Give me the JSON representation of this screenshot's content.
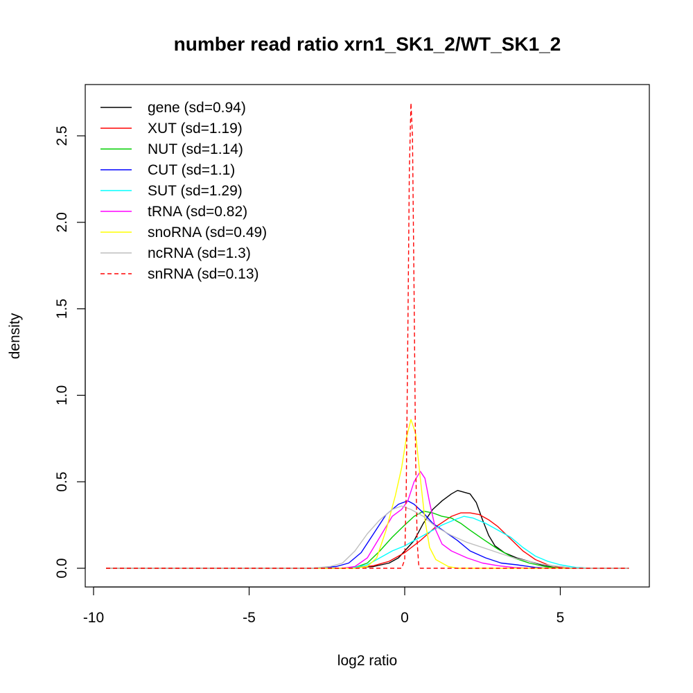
{
  "chart_data": {
    "type": "line",
    "title": "number read ratio xrn1_SK1_2/WT_SK1_2",
    "xlabel": "log2 ratio",
    "ylabel": "density",
    "xlim": [
      -10,
      7.5
    ],
    "ylim": [
      0,
      2.7
    ],
    "xticks": [
      -10,
      -5,
      0,
      5
    ],
    "xtick_labels": [
      "-10",
      "-5",
      "0",
      "5"
    ],
    "yticks": [
      0.0,
      0.5,
      1.0,
      1.5,
      2.0,
      2.5
    ],
    "ytick_labels": [
      "0.0",
      "0.5",
      "1.0",
      "1.5",
      "2.0",
      "2.5"
    ],
    "grid": false,
    "legend_position": "top-left",
    "series": [
      {
        "name": "gene (sd=0.94)",
        "color": "#000000",
        "dash": "solid",
        "points": [
          [
            -9.6,
            0
          ],
          [
            -2.0,
            0
          ],
          [
            -1.5,
            0.005
          ],
          [
            -1.0,
            0.01
          ],
          [
            -0.5,
            0.03
          ],
          [
            -0.2,
            0.06
          ],
          [
            0.0,
            0.1
          ],
          [
            0.3,
            0.16
          ],
          [
            0.6,
            0.26
          ],
          [
            0.9,
            0.34
          ],
          [
            1.2,
            0.39
          ],
          [
            1.5,
            0.43
          ],
          [
            1.7,
            0.45
          ],
          [
            1.9,
            0.44
          ],
          [
            2.1,
            0.43
          ],
          [
            2.3,
            0.38
          ],
          [
            2.5,
            0.28
          ],
          [
            2.7,
            0.19
          ],
          [
            2.9,
            0.13
          ],
          [
            3.2,
            0.09
          ],
          [
            3.6,
            0.06
          ],
          [
            4.0,
            0.04
          ],
          [
            4.4,
            0.02
          ],
          [
            4.8,
            0.005
          ],
          [
            5.2,
            0
          ],
          [
            7.2,
            0
          ]
        ]
      },
      {
        "name": "XUT (sd=1.19)",
        "color": "#ff0000",
        "dash": "solid",
        "points": [
          [
            -9.6,
            0
          ],
          [
            -2.0,
            0
          ],
          [
            -1.5,
            0.005
          ],
          [
            -1.0,
            0.015
          ],
          [
            -0.5,
            0.04
          ],
          [
            0.0,
            0.09
          ],
          [
            0.5,
            0.16
          ],
          [
            1.0,
            0.24
          ],
          [
            1.5,
            0.3
          ],
          [
            1.8,
            0.32
          ],
          [
            2.1,
            0.32
          ],
          [
            2.4,
            0.31
          ],
          [
            2.7,
            0.28
          ],
          [
            3.0,
            0.24
          ],
          [
            3.4,
            0.17
          ],
          [
            3.8,
            0.1
          ],
          [
            4.2,
            0.05
          ],
          [
            4.6,
            0.02
          ],
          [
            5.0,
            0.005
          ],
          [
            5.5,
            0
          ],
          [
            7.2,
            0
          ]
        ]
      },
      {
        "name": "NUT (sd=1.14)",
        "color": "#00cd00",
        "dash": "solid",
        "points": [
          [
            -9.6,
            0
          ],
          [
            -2.0,
            0
          ],
          [
            -1.6,
            0.005
          ],
          [
            -1.2,
            0.03
          ],
          [
            -0.8,
            0.1
          ],
          [
            -0.4,
            0.18
          ],
          [
            0.0,
            0.25
          ],
          [
            0.3,
            0.3
          ],
          [
            0.6,
            0.33
          ],
          [
            0.9,
            0.32
          ],
          [
            1.2,
            0.3
          ],
          [
            1.5,
            0.29
          ],
          [
            1.8,
            0.26
          ],
          [
            2.1,
            0.22
          ],
          [
            2.5,
            0.17
          ],
          [
            3.0,
            0.11
          ],
          [
            3.5,
            0.06
          ],
          [
            4.0,
            0.03
          ],
          [
            4.5,
            0.01
          ],
          [
            5.0,
            0
          ],
          [
            7.2,
            0
          ]
        ]
      },
      {
        "name": "CUT (sd=1.1)",
        "color": "#0000ff",
        "dash": "solid",
        "points": [
          [
            -9.6,
            0
          ],
          [
            -3.0,
            0
          ],
          [
            -2.2,
            0.01
          ],
          [
            -1.8,
            0.03
          ],
          [
            -1.4,
            0.09
          ],
          [
            -1.0,
            0.2
          ],
          [
            -0.6,
            0.31
          ],
          [
            -0.2,
            0.37
          ],
          [
            0.1,
            0.39
          ],
          [
            0.3,
            0.37
          ],
          [
            0.6,
            0.32
          ],
          [
            0.9,
            0.26
          ],
          [
            1.3,
            0.21
          ],
          [
            1.7,
            0.16
          ],
          [
            2.1,
            0.1
          ],
          [
            2.6,
            0.06
          ],
          [
            3.1,
            0.03
          ],
          [
            3.6,
            0.02
          ],
          [
            4.2,
            0.005
          ],
          [
            4.6,
            0
          ],
          [
            7.2,
            0
          ]
        ]
      },
      {
        "name": "SUT (sd=1.29)",
        "color": "#00ffff",
        "dash": "solid",
        "points": [
          [
            -9.6,
            0
          ],
          [
            -2.0,
            0
          ],
          [
            -1.6,
            0.005
          ],
          [
            -1.2,
            0.02
          ],
          [
            -0.8,
            0.06
          ],
          [
            -0.4,
            0.1
          ],
          [
            0.0,
            0.13
          ],
          [
            0.4,
            0.17
          ],
          [
            0.8,
            0.21
          ],
          [
            1.2,
            0.25
          ],
          [
            1.6,
            0.28
          ],
          [
            1.9,
            0.3
          ],
          [
            2.2,
            0.29
          ],
          [
            2.6,
            0.26
          ],
          [
            3.0,
            0.22
          ],
          [
            3.4,
            0.18
          ],
          [
            3.8,
            0.12
          ],
          [
            4.2,
            0.07
          ],
          [
            4.6,
            0.04
          ],
          [
            5.0,
            0.02
          ],
          [
            5.5,
            0.005
          ],
          [
            6.0,
            0
          ],
          [
            7.2,
            0
          ]
        ]
      },
      {
        "name": "tRNA (sd=0.82)",
        "color": "#ff00ff",
        "dash": "solid",
        "points": [
          [
            -9.6,
            0
          ],
          [
            -2.0,
            0
          ],
          [
            -1.6,
            0.01
          ],
          [
            -1.2,
            0.06
          ],
          [
            -0.8,
            0.18
          ],
          [
            -0.4,
            0.3
          ],
          [
            -0.1,
            0.34
          ],
          [
            0.1,
            0.39
          ],
          [
            0.3,
            0.5
          ],
          [
            0.5,
            0.56
          ],
          [
            0.65,
            0.52
          ],
          [
            0.8,
            0.38
          ],
          [
            1.0,
            0.22
          ],
          [
            1.2,
            0.14
          ],
          [
            1.5,
            0.1
          ],
          [
            2.0,
            0.06
          ],
          [
            2.5,
            0.03
          ],
          [
            3.0,
            0.015
          ],
          [
            3.5,
            0.005
          ],
          [
            4.0,
            0
          ],
          [
            7.2,
            0
          ]
        ]
      },
      {
        "name": "snoRNA (sd=0.49)",
        "color": "#ffff00",
        "dash": "solid",
        "points": [
          [
            -9.6,
            0
          ],
          [
            -1.6,
            0
          ],
          [
            -1.2,
            0.01
          ],
          [
            -0.9,
            0.06
          ],
          [
            -0.6,
            0.22
          ],
          [
            -0.3,
            0.42
          ],
          [
            -0.1,
            0.58
          ],
          [
            0.05,
            0.75
          ],
          [
            0.2,
            0.86
          ],
          [
            0.35,
            0.78
          ],
          [
            0.5,
            0.52
          ],
          [
            0.65,
            0.28
          ],
          [
            0.8,
            0.12
          ],
          [
            1.0,
            0.05
          ],
          [
            1.2,
            0.03
          ],
          [
            1.4,
            0.01
          ],
          [
            1.7,
            0
          ],
          [
            7.2,
            0
          ]
        ]
      },
      {
        "name": "ncRNA (sd=1.3)",
        "color": "#bebebe",
        "dash": "solid",
        "points": [
          [
            -9.6,
            0
          ],
          [
            -3.0,
            0
          ],
          [
            -2.4,
            0.01
          ],
          [
            -2.0,
            0.03
          ],
          [
            -1.6,
            0.1
          ],
          [
            -1.2,
            0.2
          ],
          [
            -0.8,
            0.28
          ],
          [
            -0.4,
            0.34
          ],
          [
            -0.1,
            0.36
          ],
          [
            0.2,
            0.34
          ],
          [
            0.6,
            0.3
          ],
          [
            1.0,
            0.24
          ],
          [
            1.5,
            0.19
          ],
          [
            2.0,
            0.15
          ],
          [
            2.5,
            0.12
          ],
          [
            3.0,
            0.09
          ],
          [
            3.5,
            0.06
          ],
          [
            4.0,
            0.04
          ],
          [
            4.5,
            0.02
          ],
          [
            5.0,
            0.01
          ],
          [
            5.5,
            0
          ],
          [
            7.2,
            0
          ]
        ]
      },
      {
        "name": "snRNA (sd=0.13)",
        "color": "#ff0000",
        "dash": "dashed",
        "points": [
          [
            -9.6,
            0
          ],
          [
            -0.1,
            0
          ],
          [
            0.0,
            0.05
          ],
          [
            0.05,
            0.45
          ],
          [
            0.1,
            1.35
          ],
          [
            0.15,
            2.3
          ],
          [
            0.2,
            2.69
          ],
          [
            0.25,
            2.5
          ],
          [
            0.3,
            1.6
          ],
          [
            0.35,
            0.65
          ],
          [
            0.4,
            0.15
          ],
          [
            0.45,
            0.02
          ],
          [
            0.5,
            0
          ],
          [
            7.2,
            0
          ]
        ]
      }
    ]
  }
}
